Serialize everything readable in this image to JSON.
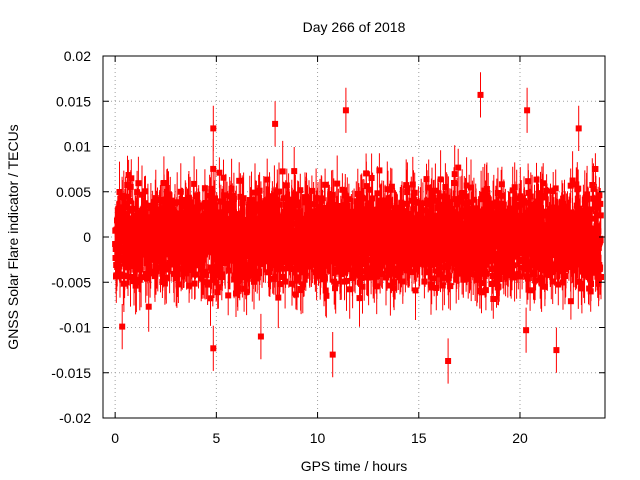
{
  "chart_data": {
    "type": "scatter",
    "title": "Day 266 of 2018",
    "xlabel": "GPS time / hours",
    "ylabel": "GNSS Solar Flare indicator / TECUs",
    "xlim": [
      -0.6,
      24.2
    ],
    "ylim": [
      -0.02,
      0.02
    ],
    "x_ticks": [
      0,
      5,
      10,
      15,
      20
    ],
    "x_tick_labels": [
      "0",
      "5",
      "10",
      "15",
      "20"
    ],
    "y_ticks": [
      -0.02,
      -0.015,
      -0.01,
      -0.005,
      0,
      0.005,
      0.01,
      0.015,
      0.02
    ],
    "y_tick_labels": [
      "-0.02",
      "-0.015",
      "-0.01",
      "-0.005",
      "0",
      "0.005",
      "0.01",
      "0.015",
      "0.02"
    ],
    "grid": true,
    "series": [
      {
        "name": "GNSS Solar Flare indicator",
        "color": "#ff0000",
        "marker": "square",
        "error_bars": true,
        "typical_error": 0.0025,
        "noise_spread": 0.0045,
        "point_count": 2880,
        "x_range": [
          0,
          24
        ],
        "notable_points": [
          {
            "x": 4.85,
            "y": 0.012
          },
          {
            "x": 7.9,
            "y": 0.0125
          },
          {
            "x": 11.4,
            "y": 0.014
          },
          {
            "x": 18.05,
            "y": 0.0157
          },
          {
            "x": 20.35,
            "y": 0.014
          },
          {
            "x": 22.9,
            "y": 0.012
          },
          {
            "x": 4.85,
            "y": -0.0123
          },
          {
            "x": 10.75,
            "y": -0.013
          },
          {
            "x": 16.45,
            "y": -0.0137
          },
          {
            "x": 21.8,
            "y": -0.0125
          },
          {
            "x": 0.35,
            "y": -0.0099
          },
          {
            "x": 7.2,
            "y": -0.011
          },
          {
            "x": 20.3,
            "y": -0.0103
          }
        ]
      }
    ]
  }
}
